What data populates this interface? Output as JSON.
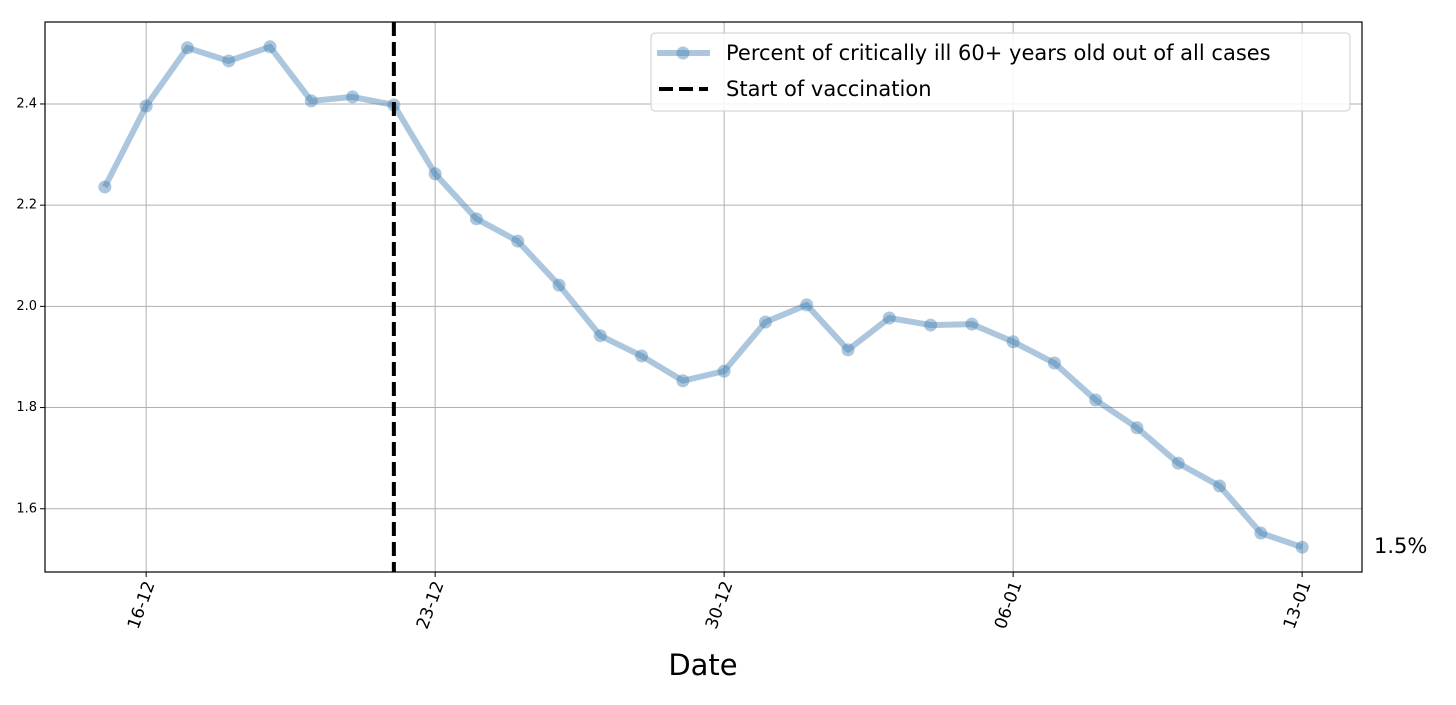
{
  "chart_data": {
    "type": "line",
    "xlabel": "Date",
    "x": [
      "15-12",
      "16-12",
      "17-12",
      "18-12",
      "19-12",
      "20-12",
      "21-12",
      "22-12",
      "23-12",
      "24-12",
      "25-12",
      "26-12",
      "27-12",
      "28-12",
      "29-12",
      "30-12",
      "31-12",
      "01-01",
      "02-01",
      "03-01",
      "04-01",
      "05-01",
      "06-01",
      "07-01",
      "08-01",
      "09-01",
      "10-01",
      "11-01",
      "12-01",
      "13-01"
    ],
    "series": [
      {
        "name": "Percent of critically ill 60+ years old out of all cases",
        "color": "#4682b4",
        "alpha": 0.45,
        "values": [
          2.236,
          2.396,
          2.511,
          2.485,
          2.513,
          2.406,
          2.414,
          2.398,
          2.262,
          2.173,
          2.129,
          2.042,
          1.942,
          1.902,
          1.853,
          1.872,
          1.969,
          2.003,
          1.914,
          1.977,
          1.963,
          1.965,
          1.93,
          1.888,
          1.815,
          1.76,
          1.69,
          1.645,
          1.552,
          1.524
        ]
      }
    ],
    "vline": {
      "x": "22-12",
      "name": "Start of vaccination",
      "color": "#000000"
    },
    "annotation": {
      "text": "1.5%",
      "color": "#4682b4"
    },
    "xticks": [
      "16-12",
      "23-12",
      "30-12",
      "06-01",
      "13-01"
    ],
    "ylim": [
      1.475,
      2.562
    ],
    "yticks": [
      1.6,
      1.8,
      {
        "value": 2.0,
        "label": "2.0"
      },
      2.2,
      2.4
    ],
    "grid": true,
    "legend": "upper right"
  }
}
